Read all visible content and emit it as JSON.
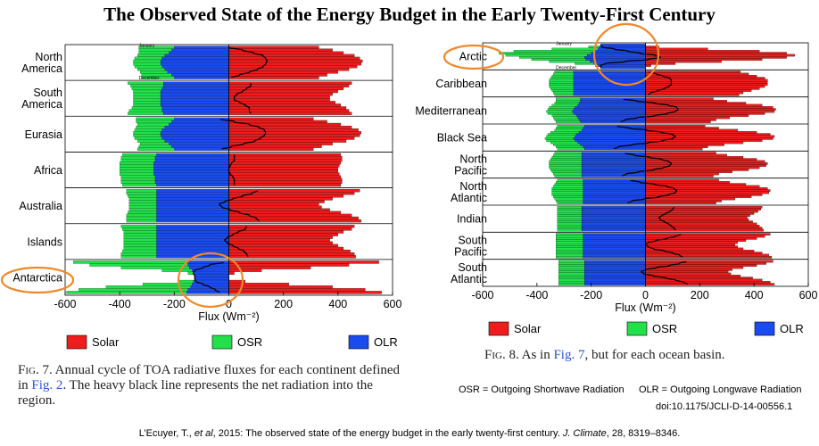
{
  "title": "The Observed State of the Energy Budget in the Early Twenty-First Century",
  "chart_data": [
    {
      "type": "bar",
      "orientation": "horizontal",
      "xlabel": "Flux (Wm⁻²)",
      "xlim": [
        -600,
        600
      ],
      "xticks": [
        -600,
        -400,
        -200,
        0,
        200,
        400,
        600
      ],
      "month_labels": [
        "January",
        "December"
      ],
      "series": [
        {
          "name": "Solar",
          "color": "#ee1c1c"
        },
        {
          "name": "OSR",
          "color": "#22e04a"
        },
        {
          "name": "OLR",
          "color": "#1a4bf0"
        }
      ],
      "regions": [
        {
          "name": "North America",
          "label_lines": [
            "North",
            "America"
          ],
          "solar": [
            330,
            380,
            420,
            460,
            480,
            490,
            485,
            470,
            440,
            400,
            360,
            330
          ],
          "osr": [
            -130,
            -120,
            -110,
            -100,
            -100,
            -100,
            -100,
            -100,
            -100,
            -100,
            -110,
            -120
          ],
          "olr": [
            -200,
            -210,
            -220,
            -235,
            -245,
            -250,
            -250,
            -245,
            -235,
            -225,
            -210,
            -200
          ]
        },
        {
          "name": "South America",
          "label_lines": [
            "South",
            "America"
          ],
          "solar": [
            450,
            440,
            420,
            400,
            380,
            370,
            370,
            390,
            410,
            430,
            440,
            450
          ],
          "osr": [
            -130,
            -120,
            -110,
            -100,
            -100,
            -100,
            -100,
            -100,
            -100,
            -110,
            -120,
            -130
          ],
          "olr": [
            -240,
            -240,
            -245,
            -250,
            -250,
            -250,
            -250,
            -250,
            -250,
            -245,
            -245,
            -240
          ]
        },
        {
          "name": "Eurasia",
          "label_lines": [
            "Eurasia"
          ],
          "solar": [
            310,
            360,
            410,
            450,
            475,
            485,
            480,
            460,
            430,
            380,
            340,
            310
          ],
          "osr": [
            -140,
            -130,
            -115,
            -105,
            -100,
            -100,
            -100,
            -100,
            -100,
            -105,
            -120,
            -135
          ],
          "olr": [
            -200,
            -210,
            -220,
            -235,
            -245,
            -250,
            -250,
            -245,
            -235,
            -220,
            -210,
            -200
          ]
        },
        {
          "name": "Africa",
          "label_lines": [
            "Africa"
          ],
          "solar": [
            410,
            415,
            415,
            410,
            405,
            400,
            400,
            405,
            410,
            415,
            415,
            410
          ],
          "osr": [
            -125,
            -125,
            -125,
            -125,
            -125,
            -125,
            -125,
            -125,
            -125,
            -125,
            -125,
            -125
          ],
          "olr": [
            -265,
            -270,
            -270,
            -275,
            -275,
            -275,
            -275,
            -275,
            -270,
            -270,
            -270,
            -265
          ]
        },
        {
          "name": "Australia",
          "label_lines": [
            "Australia"
          ],
          "solar": [
            480,
            460,
            420,
            380,
            350,
            330,
            340,
            370,
            410,
            450,
            475,
            485
          ],
          "osr": [
            -110,
            -110,
            -105,
            -100,
            -100,
            -100,
            -100,
            -100,
            -105,
            -110,
            -110,
            -110
          ],
          "olr": [
            -265,
            -265,
            -265,
            -265,
            -265,
            -265,
            -265,
            -265,
            -265,
            -265,
            -265,
            -265
          ]
        },
        {
          "name": "Islands",
          "label_lines": [
            "Islands"
          ],
          "solar": [
            460,
            450,
            420,
            400,
            380,
            370,
            380,
            400,
            420,
            445,
            460,
            465
          ],
          "osr": [
            -130,
            -125,
            -120,
            -120,
            -120,
            -120,
            -120,
            -120,
            -120,
            -125,
            -130,
            -130
          ],
          "olr": [
            -265,
            -265,
            -265,
            -265,
            -265,
            -265,
            -265,
            -265,
            -265,
            -265,
            -265,
            -265
          ]
        },
        {
          "name": "Antarctica",
          "label_lines": [
            "Antarctica"
          ],
          "solar": [
            550,
            440,
            300,
            120,
            20,
            0,
            0,
            60,
            220,
            380,
            500,
            560
          ],
          "osr": [
            -420,
            -360,
            -250,
            -110,
            -20,
            0,
            0,
            -50,
            -180,
            -310,
            -400,
            -440
          ],
          "olr": [
            -150,
            -150,
            -145,
            -135,
            -130,
            -125,
            -125,
            -130,
            -135,
            -140,
            -150,
            -155
          ]
        }
      ]
    },
    {
      "type": "bar",
      "orientation": "horizontal",
      "xlabel": "Flux (Wm⁻²)",
      "xlim": [
        -600,
        600
      ],
      "xticks": [
        -600,
        -400,
        -200,
        0,
        200,
        400,
        600
      ],
      "month_labels": [
        "January",
        "December"
      ],
      "series": [
        {
          "name": "Solar",
          "color": "#ee1c1c"
        },
        {
          "name": "OSR",
          "color": "#22e04a"
        },
        {
          "name": "OLR",
          "color": "#1a4bf0"
        }
      ],
      "regions": [
        {
          "name": "Arctic",
          "label_lines": [
            "Arctic"
          ],
          "solar": [
            0,
            50,
            230,
            420,
            520,
            550,
            520,
            430,
            280,
            110,
            20,
            0
          ],
          "osr": [
            0,
            -40,
            -170,
            -300,
            -340,
            -300,
            -240,
            -200,
            -150,
            -70,
            -10,
            0
          ],
          "olr": [
            -165,
            -170,
            -175,
            -185,
            -200,
            -215,
            -225,
            -220,
            -205,
            -190,
            -175,
            -165
          ]
        },
        {
          "name": "Caribbean",
          "label_lines": [
            "Caribbean"
          ],
          "solar": [
            350,
            380,
            410,
            440,
            450,
            450,
            450,
            440,
            420,
            390,
            360,
            345
          ],
          "osr": [
            -70,
            -75,
            -80,
            -85,
            -90,
            -90,
            -90,
            -90,
            -85,
            -80,
            -75,
            -70
          ],
          "olr": [
            -265,
            -265,
            -265,
            -265,
            -265,
            -265,
            -265,
            -265,
            -265,
            -265,
            -265,
            -265
          ]
        },
        {
          "name": "Mediterranean",
          "label_lines": [
            "Mediterranean"
          ],
          "solar": [
            250,
            300,
            370,
            430,
            470,
            480,
            475,
            440,
            380,
            310,
            260,
            240
          ],
          "osr": [
            -90,
            -90,
            -90,
            -95,
            -95,
            -95,
            -95,
            -95,
            -90,
            -90,
            -90,
            -90
          ],
          "olr": [
            -240,
            -240,
            -245,
            -250,
            -260,
            -265,
            -270,
            -265,
            -255,
            -250,
            -245,
            -240
          ]
        },
        {
          "name": "Black Sea",
          "label_lines": [
            "Black Sea"
          ],
          "solar": [
            220,
            270,
            340,
            410,
            460,
            475,
            470,
            430,
            360,
            290,
            230,
            210
          ],
          "osr": [
            -100,
            -100,
            -100,
            -105,
            -105,
            -105,
            -105,
            -105,
            -100,
            -100,
            -100,
            -100
          ],
          "olr": [
            -225,
            -230,
            -235,
            -245,
            -255,
            -260,
            -265,
            -260,
            -250,
            -240,
            -230,
            -225
          ]
        },
        {
          "name": "North Pacific",
          "label_lines": [
            "North",
            "Pacific"
          ],
          "solar": [
            260,
            300,
            360,
            410,
            440,
            450,
            445,
            420,
            380,
            320,
            270,
            250
          ],
          "osr": [
            -100,
            -105,
            -110,
            -115,
            -120,
            -120,
            -120,
            -120,
            -115,
            -110,
            -105,
            -100
          ],
          "olr": [
            -235,
            -235,
            -235,
            -235,
            -235,
            -235,
            -235,
            -235,
            -235,
            -235,
            -235,
            -235
          ]
        },
        {
          "name": "North Atlantic",
          "label_lines": [
            "North",
            "Atlantic"
          ],
          "solar": [
            270,
            310,
            370,
            420,
            450,
            460,
            455,
            430,
            390,
            330,
            280,
            260
          ],
          "osr": [
            -95,
            -100,
            -105,
            -110,
            -115,
            -115,
            -115,
            -115,
            -110,
            -105,
            -100,
            -95
          ],
          "olr": [
            -230,
            -230,
            -230,
            -230,
            -230,
            -230,
            -230,
            -230,
            -230,
            -230,
            -230,
            -230
          ]
        },
        {
          "name": "Indian",
          "label_lines": [
            "Indian"
          ],
          "solar": [
            430,
            425,
            415,
            400,
            385,
            375,
            380,
            395,
            410,
            420,
            430,
            435
          ],
          "osr": [
            -90,
            -90,
            -90,
            -90,
            -90,
            -90,
            -90,
            -90,
            -90,
            -90,
            -90,
            -90
          ],
          "olr": [
            -235,
            -235,
            -235,
            -235,
            -235,
            -235,
            -235,
            -235,
            -235,
            -235,
            -235,
            -235
          ]
        },
        {
          "name": "South Pacific",
          "label_lines": [
            "South",
            "Pacific"
          ],
          "solar": [
            460,
            440,
            410,
            370,
            340,
            330,
            340,
            360,
            400,
            430,
            455,
            465
          ],
          "osr": [
            -100,
            -100,
            -100,
            -100,
            -100,
            -100,
            -100,
            -100,
            -100,
            -100,
            -100,
            -100
          ],
          "olr": [
            -230,
            -230,
            -230,
            -230,
            -230,
            -230,
            -230,
            -230,
            -230,
            -230,
            -230,
            -230
          ]
        },
        {
          "name": "South Atlantic",
          "label_lines": [
            "South",
            "Atlantic"
          ],
          "solar": [
            470,
            445,
            410,
            360,
            320,
            305,
            315,
            350,
            395,
            430,
            460,
            475
          ],
          "osr": [
            -95,
            -95,
            -95,
            -95,
            -95,
            -95,
            -95,
            -95,
            -95,
            -95,
            -95,
            -95
          ],
          "olr": [
            -225,
            -225,
            -225,
            -225,
            -225,
            -225,
            -225,
            -225,
            -225,
            -225,
            -225,
            -225
          ]
        }
      ]
    }
  ],
  "captions": {
    "fig7": {
      "label": "Fig. 7.",
      "before_link1": " Annual cycle of TOA radiative fluxes for each continent defined in ",
      "link1": "Fig. 2",
      "after_link1": ". The heavy black line represents the net radiation into the region."
    },
    "fig8": {
      "label": "Fig. 8.",
      "before_link1": " As in ",
      "link1": "Fig. 7",
      "after_link1": ", but for each ocean basin."
    }
  },
  "abbreviations": {
    "osr": "OSR = Outgoing Shortwave Radiation",
    "olr": "OLR = Outgoing Longwave Radiation"
  },
  "doi": "doi:10.1175/JCLI-D-14-00556.1",
  "citation": {
    "authors": "L’Ecuyer, T., ",
    "etal": "et al",
    "middle": ", 2015: The observed state of the energy budget in the early twenty-first century. ",
    "journal": "J. Climate",
    "rest": ", 28, 8319–8346."
  },
  "highlight_color": "#f0882a"
}
